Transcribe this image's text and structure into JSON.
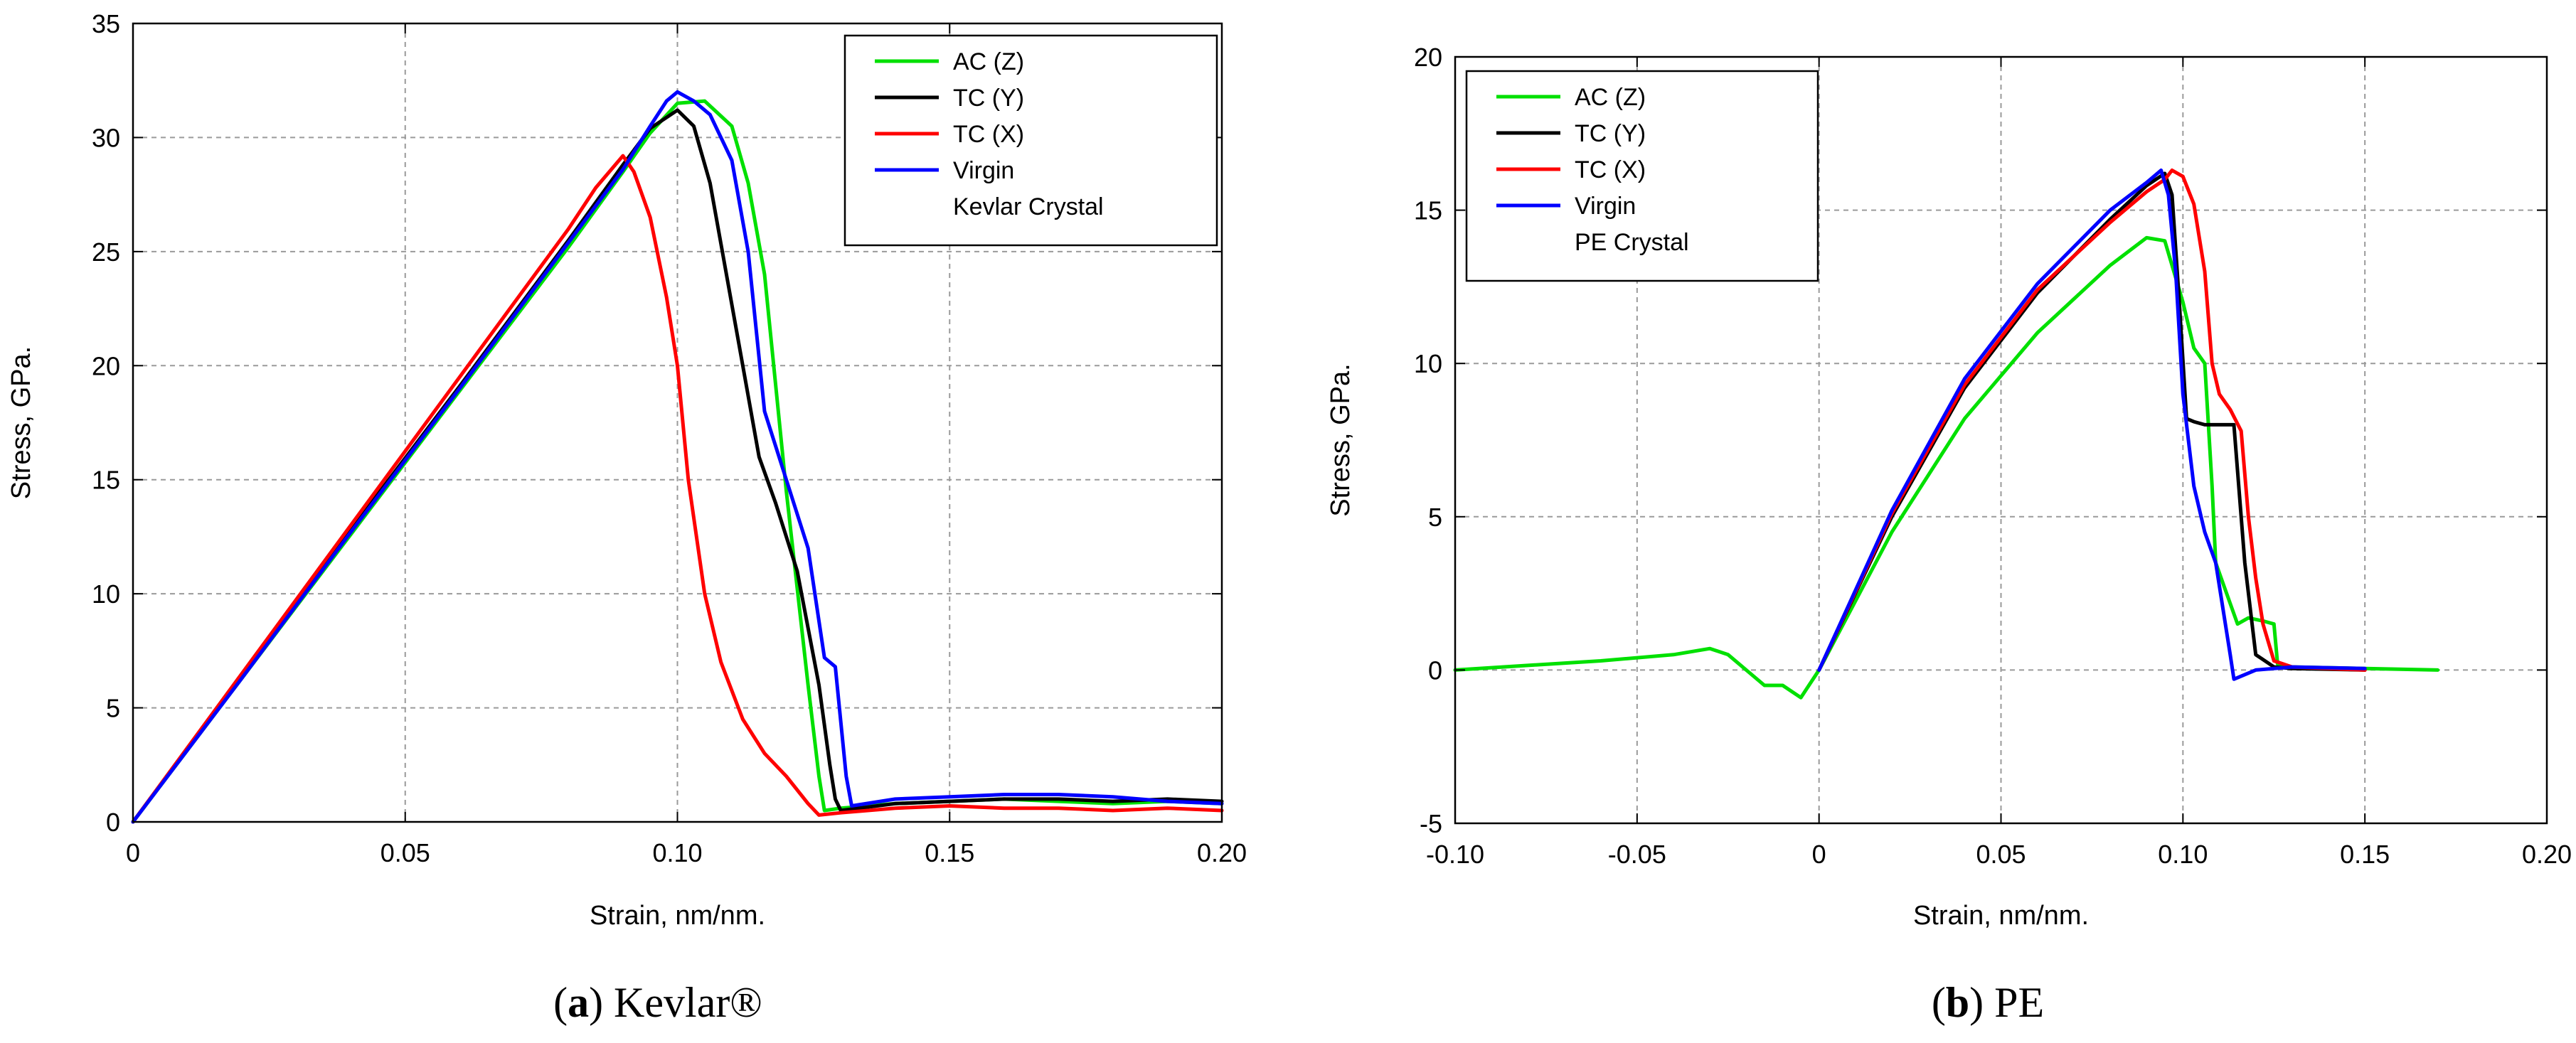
{
  "colors": {
    "ac_z": "#00e000",
    "tc_y": "#000000",
    "tc_x": "#ff0000",
    "virgin": "#0000ff",
    "grid": "#9a9a9a",
    "axis": "#000000"
  },
  "chart_data": [
    {
      "id": "kevlar",
      "type": "line",
      "caption_letter": "a",
      "caption_text": "Kevlar®",
      "xlabel": "Strain, nm/nm.",
      "ylabel": "Stress, GPa.",
      "xlim": [
        0,
        0.2
      ],
      "ylim": [
        0,
        35
      ],
      "xticks": [
        0,
        0.05,
        0.1,
        0.15,
        0.2
      ],
      "xtick_labels": [
        "0",
        "0.05",
        "0.10",
        "0.15",
        "0.20"
      ],
      "yticks": [
        0,
        5,
        10,
        15,
        20,
        25,
        30,
        35
      ],
      "ytick_labels": [
        "0",
        "5",
        "10",
        "15",
        "20",
        "25",
        "30",
        "35"
      ],
      "grid": true,
      "legend_position": "top-right",
      "legend": [
        {
          "lines": [
            "AC (Z)"
          ],
          "color_key": "ac_z"
        },
        {
          "lines": [
            "TC (Y)"
          ],
          "color_key": "tc_y"
        },
        {
          "lines": [
            "TC (X)"
          ],
          "color_key": "tc_x"
        },
        {
          "lines": [
            "Virgin",
            "Kevlar Crystal"
          ],
          "color_key": "virgin"
        }
      ],
      "series": [
        {
          "name": "AC (Z)",
          "color_key": "ac_z",
          "x": [
            0,
            0.02,
            0.04,
            0.06,
            0.08,
            0.09,
            0.095,
            0.1,
            0.105,
            0.11,
            0.113,
            0.116,
            0.12,
            0.124,
            0.126,
            0.127,
            0.13,
            0.14,
            0.15,
            0.16,
            0.17,
            0.18,
            0.19,
            0.2
          ],
          "y": [
            0,
            6.3,
            12.6,
            18.9,
            25.2,
            28.5,
            30.2,
            31.5,
            31.6,
            30.5,
            28,
            24,
            14.5,
            6,
            2,
            0.5,
            0.6,
            0.8,
            0.9,
            1.0,
            0.9,
            0.8,
            0.9,
            0.8
          ]
        },
        {
          "name": "TC (Y)",
          "color_key": "tc_y",
          "x": [
            0,
            0.02,
            0.04,
            0.06,
            0.08,
            0.09,
            0.095,
            0.1,
            0.103,
            0.106,
            0.109,
            0.112,
            0.115,
            0.118,
            0.122,
            0.126,
            0.128,
            0.129,
            0.13,
            0.14,
            0.15,
            0.16,
            0.17,
            0.18,
            0.19,
            0.2
          ],
          "y": [
            0,
            6.4,
            12.8,
            19.1,
            25.5,
            28.8,
            30.4,
            31.2,
            30.5,
            28,
            24,
            20,
            16,
            14,
            11,
            6,
            2.5,
            1,
            0.5,
            0.8,
            0.9,
            1.0,
            1.0,
            0.9,
            1.0,
            0.9
          ]
        },
        {
          "name": "TC (X)",
          "color_key": "tc_x",
          "x": [
            0,
            0.02,
            0.04,
            0.06,
            0.08,
            0.085,
            0.09,
            0.092,
            0.095,
            0.098,
            0.1,
            0.102,
            0.105,
            0.108,
            0.112,
            0.116,
            0.12,
            0.124,
            0.126,
            0.13,
            0.14,
            0.15,
            0.16,
            0.17,
            0.18,
            0.19,
            0.2
          ],
          "y": [
            0,
            6.5,
            13,
            19.5,
            26,
            27.8,
            29.2,
            28.5,
            26.5,
            23,
            20,
            15,
            10,
            7,
            4.5,
            3,
            2,
            0.8,
            0.3,
            0.4,
            0.6,
            0.7,
            0.6,
            0.6,
            0.5,
            0.6,
            0.5
          ]
        },
        {
          "name": "Virgin Kevlar Crystal",
          "color_key": "virgin",
          "x": [
            0,
            0.02,
            0.04,
            0.06,
            0.08,
            0.09,
            0.095,
            0.098,
            0.1,
            0.103,
            0.106,
            0.11,
            0.113,
            0.116,
            0.12,
            0.124,
            0.127,
            0.129,
            0.131,
            0.132,
            0.14,
            0.15,
            0.16,
            0.17,
            0.18,
            0.19,
            0.2
          ],
          "y": [
            0,
            6.3,
            12.7,
            19,
            25.4,
            28.6,
            30.5,
            31.6,
            32,
            31.6,
            31,
            29,
            25,
            18,
            15,
            12,
            7.2,
            6.8,
            2,
            0.7,
            1.0,
            1.1,
            1.2,
            1.2,
            1.1,
            0.9,
            0.8
          ]
        }
      ]
    },
    {
      "id": "pe",
      "type": "line",
      "caption_letter": "b",
      "caption_text": "PE",
      "xlabel": "Strain, nm/nm.",
      "ylabel": "Stress, GPa.",
      "xlim": [
        -0.1,
        0.2
      ],
      "ylim": [
        -5,
        20
      ],
      "xticks": [
        -0.1,
        -0.05,
        0,
        0.05,
        0.1,
        0.15,
        0.2
      ],
      "xtick_labels": [
        "-0.10",
        "-0.05",
        "0",
        "0.05",
        "0.10",
        "0.15",
        "0.20"
      ],
      "yticks": [
        -5,
        0,
        5,
        10,
        15,
        20
      ],
      "ytick_labels": [
        "-5",
        "0",
        "5",
        "10",
        "15",
        "20"
      ],
      "grid": true,
      "legend_position": "top-left",
      "legend": [
        {
          "lines": [
            "AC (Z)"
          ],
          "color_key": "ac_z"
        },
        {
          "lines": [
            "TC (Y)"
          ],
          "color_key": "tc_y"
        },
        {
          "lines": [
            "TC (X)"
          ],
          "color_key": "tc_x"
        },
        {
          "lines": [
            "Virgin",
            "PE Crystal"
          ],
          "color_key": "virgin"
        }
      ],
      "series": [
        {
          "name": "AC (Z)",
          "color_key": "ac_z",
          "x": [
            -0.1,
            -0.08,
            -0.06,
            -0.04,
            -0.03,
            -0.025,
            -0.02,
            -0.015,
            -0.01,
            -0.005,
            0,
            0.02,
            0.04,
            0.06,
            0.08,
            0.09,
            0.095,
            0.1,
            0.103,
            0.106,
            0.108,
            0.109,
            0.112,
            0.115,
            0.118,
            0.122,
            0.125,
            0.126,
            0.13,
            0.15,
            0.17
          ],
          "y": [
            0,
            0.15,
            0.3,
            0.5,
            0.7,
            0.5,
            0,
            -0.5,
            -0.5,
            -0.9,
            0,
            4.5,
            8.2,
            11,
            13.2,
            14.1,
            14,
            12,
            10.5,
            10,
            6,
            3.5,
            2.5,
            1.5,
            1.7,
            1.6,
            1.5,
            0.2,
            0.1,
            0.05,
            0
          ]
        },
        {
          "name": "TC (Y)",
          "color_key": "tc_y",
          "x": [
            0,
            0.02,
            0.04,
            0.06,
            0.08,
            0.09,
            0.095,
            0.097,
            0.099,
            0.101,
            0.103,
            0.106,
            0.11,
            0.114,
            0.116,
            0.117,
            0.12,
            0.125,
            0.13,
            0.15
          ],
          "y": [
            0,
            5,
            9.2,
            12.3,
            14.7,
            15.8,
            16.2,
            15.5,
            12,
            8.2,
            8.1,
            8,
            8,
            8,
            5,
            3.5,
            0.5,
            0.1,
            0.05,
            0
          ]
        },
        {
          "name": "TC (X)",
          "color_key": "tc_x",
          "x": [
            0,
            0.02,
            0.04,
            0.06,
            0.08,
            0.09,
            0.095,
            0.097,
            0.1,
            0.103,
            0.106,
            0.108,
            0.11,
            0.113,
            0.116,
            0.118,
            0.12,
            0.122,
            0.125,
            0.13,
            0.15
          ],
          "y": [
            0,
            5.1,
            9.3,
            12.4,
            14.6,
            15.6,
            16,
            16.3,
            16.1,
            15.2,
            13,
            10,
            9,
            8.5,
            7.8,
            5,
            3,
            1.5,
            0.3,
            0.1,
            0
          ]
        },
        {
          "name": "Virgin PE Crystal",
          "color_key": "virgin",
          "x": [
            0,
            0.02,
            0.04,
            0.06,
            0.08,
            0.09,
            0.094,
            0.096,
            0.098,
            0.1,
            0.103,
            0.106,
            0.109,
            0.111,
            0.113,
            0.114,
            0.12,
            0.13,
            0.15
          ],
          "y": [
            0,
            5.2,
            9.5,
            12.6,
            15,
            15.9,
            16.3,
            15.5,
            13,
            9,
            6,
            4.5,
            3.5,
            2,
            0.5,
            -0.3,
            0,
            0.1,
            0.05
          ]
        }
      ]
    }
  ]
}
